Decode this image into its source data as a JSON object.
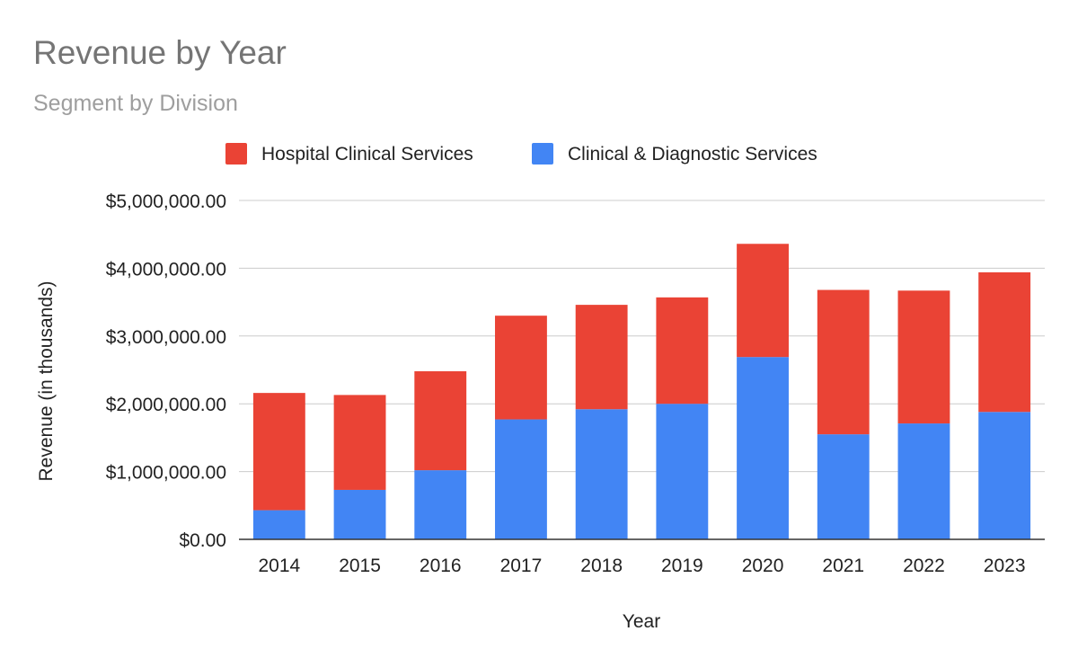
{
  "chart_data": {
    "type": "bar",
    "stacked": true,
    "title": "Revenue by Year",
    "subtitle": "Segment by Division",
    "xlabel": "Year",
    "ylabel": "Revenue (in thousands)",
    "ylim": [
      0,
      5000000
    ],
    "yticks": [
      0,
      1000000,
      2000000,
      3000000,
      4000000,
      5000000
    ],
    "ytick_labels": [
      "$0.00",
      "$1,000,000.00",
      "$2,000,000.00",
      "$3,000,000.00",
      "$4,000,000.00",
      "$5,000,000.00"
    ],
    "grid": true,
    "legend_position": "top",
    "categories": [
      "2014",
      "2015",
      "2016",
      "2017",
      "2018",
      "2019",
      "2020",
      "2021",
      "2022",
      "2023"
    ],
    "series": [
      {
        "name": "Clinical & Diagnostic Services",
        "color": "#4285f4",
        "values": [
          430000,
          730000,
          1020000,
          1770000,
          1920000,
          2000000,
          2690000,
          1550000,
          1710000,
          1880000
        ]
      },
      {
        "name": "Hospital Clinical Services",
        "color": "#ea4335",
        "values": [
          1730000,
          1400000,
          1460000,
          1530000,
          1540000,
          1570000,
          1670000,
          2130000,
          1960000,
          2060000
        ]
      }
    ],
    "legend_order": [
      "Hospital Clinical Services",
      "Clinical & Diagnostic Services"
    ]
  }
}
